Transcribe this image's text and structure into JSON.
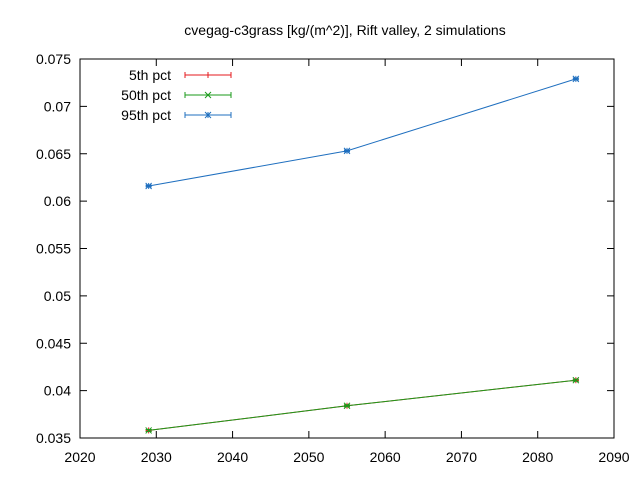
{
  "chart_data": {
    "type": "line",
    "title": "cvegag-c3grass [kg/(m^2)], Rift valley, 2 simulations",
    "xlabel": "",
    "ylabel": "",
    "xlim": [
      2020,
      2090
    ],
    "ylim": [
      0.035,
      0.075
    ],
    "x_ticks": [
      "2020",
      "2030",
      "2040",
      "2050",
      "2060",
      "2070",
      "2080",
      "2090"
    ],
    "y_ticks": [
      "0.035",
      "0.04",
      "0.045",
      "0.05",
      "0.055",
      "0.06",
      "0.065",
      "0.07",
      "0.075"
    ],
    "grid": false,
    "legend_position": "top-left",
    "x": [
      2029,
      2055,
      2085
    ],
    "series": [
      {
        "name": "5th pct",
        "color": "#e41a1c",
        "marker": "plus",
        "values": [
          0.0358,
          0.0384,
          0.0411
        ],
        "err": [
          0.0001,
          0.0001,
          0.0001
        ]
      },
      {
        "name": "50th pct",
        "color": "#1a9a1a",
        "marker": "x",
        "values": [
          0.0358,
          0.0384,
          0.0411
        ],
        "err": [
          0.0001,
          0.0001,
          0.0001
        ]
      },
      {
        "name": "95th pct",
        "color": "#1f6fbf",
        "marker": "star",
        "values": [
          0.0616,
          0.0653,
          0.0729
        ],
        "err": [
          0.0001,
          0.0001,
          0.0001
        ]
      }
    ]
  }
}
